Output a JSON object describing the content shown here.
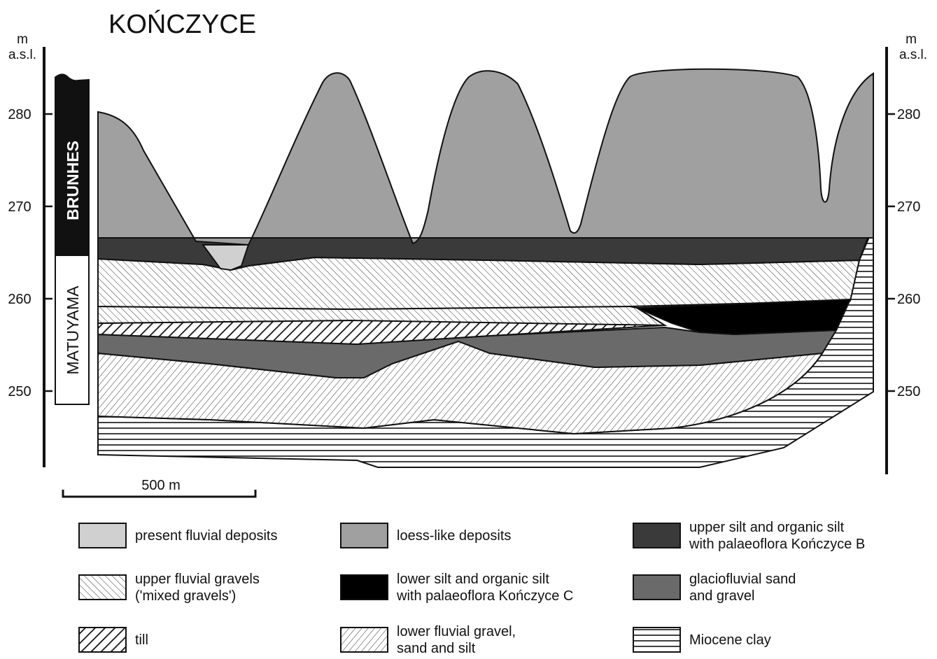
{
  "title": "KOŃCZYCE",
  "axis": {
    "unit": [
      "m",
      "a.s.l."
    ],
    "ticks": [
      280,
      270,
      260,
      250
    ]
  },
  "polarity": {
    "upper": "BRUNHES",
    "lower": "MATUYAMA"
  },
  "scale_bar": "500 m",
  "legend": [
    {
      "label": [
        "present fluvial deposits"
      ]
    },
    {
      "label": [
        "loess-like deposits"
      ]
    },
    {
      "label": [
        "upper silt and organic silt",
        "with palaeoflora Kończyce B"
      ]
    },
    {
      "label": [
        "upper fluvial gravels",
        "('mixed gravels')"
      ]
    },
    {
      "label": [
        "lower silt and organic silt",
        "with palaeoflora Kończyce C"
      ]
    },
    {
      "label": [
        "glaciofluvial sand",
        "and gravel"
      ]
    },
    {
      "label": [
        "till"
      ]
    },
    {
      "label": [
        "lower fluvial gravel,",
        "sand and silt"
      ]
    },
    {
      "label": [
        "Miocene clay"
      ]
    }
  ]
}
